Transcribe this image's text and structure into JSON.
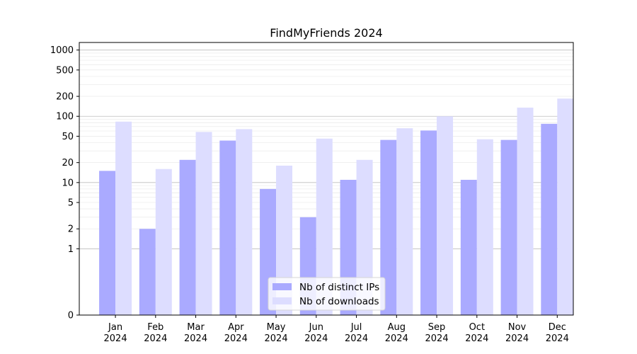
{
  "chart_data": {
    "type": "bar",
    "title": "FindMyFriends 2024",
    "xlabel": "",
    "ylabel": "",
    "yscale": "symlog",
    "ylim": [
      0,
      1300
    ],
    "yticks": [
      0,
      1,
      2,
      5,
      10,
      20,
      50,
      100,
      200,
      500,
      1000
    ],
    "grid": true,
    "legend_position": "bottom-center",
    "categories": [
      [
        "Jan",
        "2024"
      ],
      [
        "Feb",
        "2024"
      ],
      [
        "Mar",
        "2024"
      ],
      [
        "Apr",
        "2024"
      ],
      [
        "May",
        "2024"
      ],
      [
        "Jun",
        "2024"
      ],
      [
        "Jul",
        "2024"
      ],
      [
        "Aug",
        "2024"
      ],
      [
        "Sep",
        "2024"
      ],
      [
        "Oct",
        "2024"
      ],
      [
        "Nov",
        "2024"
      ],
      [
        "Dec",
        "2024"
      ]
    ],
    "series": [
      {
        "name": "Nb of distinct IPs",
        "color": "#aaaaff",
        "values": [
          15,
          2,
          22,
          43,
          8,
          3,
          11,
          44,
          61,
          11,
          44,
          77
        ]
      },
      {
        "name": "Nb of downloads",
        "color": "#ddddff",
        "values": [
          83,
          16,
          58,
          64,
          18,
          46,
          22,
          66,
          100,
          45,
          135,
          185
        ]
      }
    ]
  }
}
